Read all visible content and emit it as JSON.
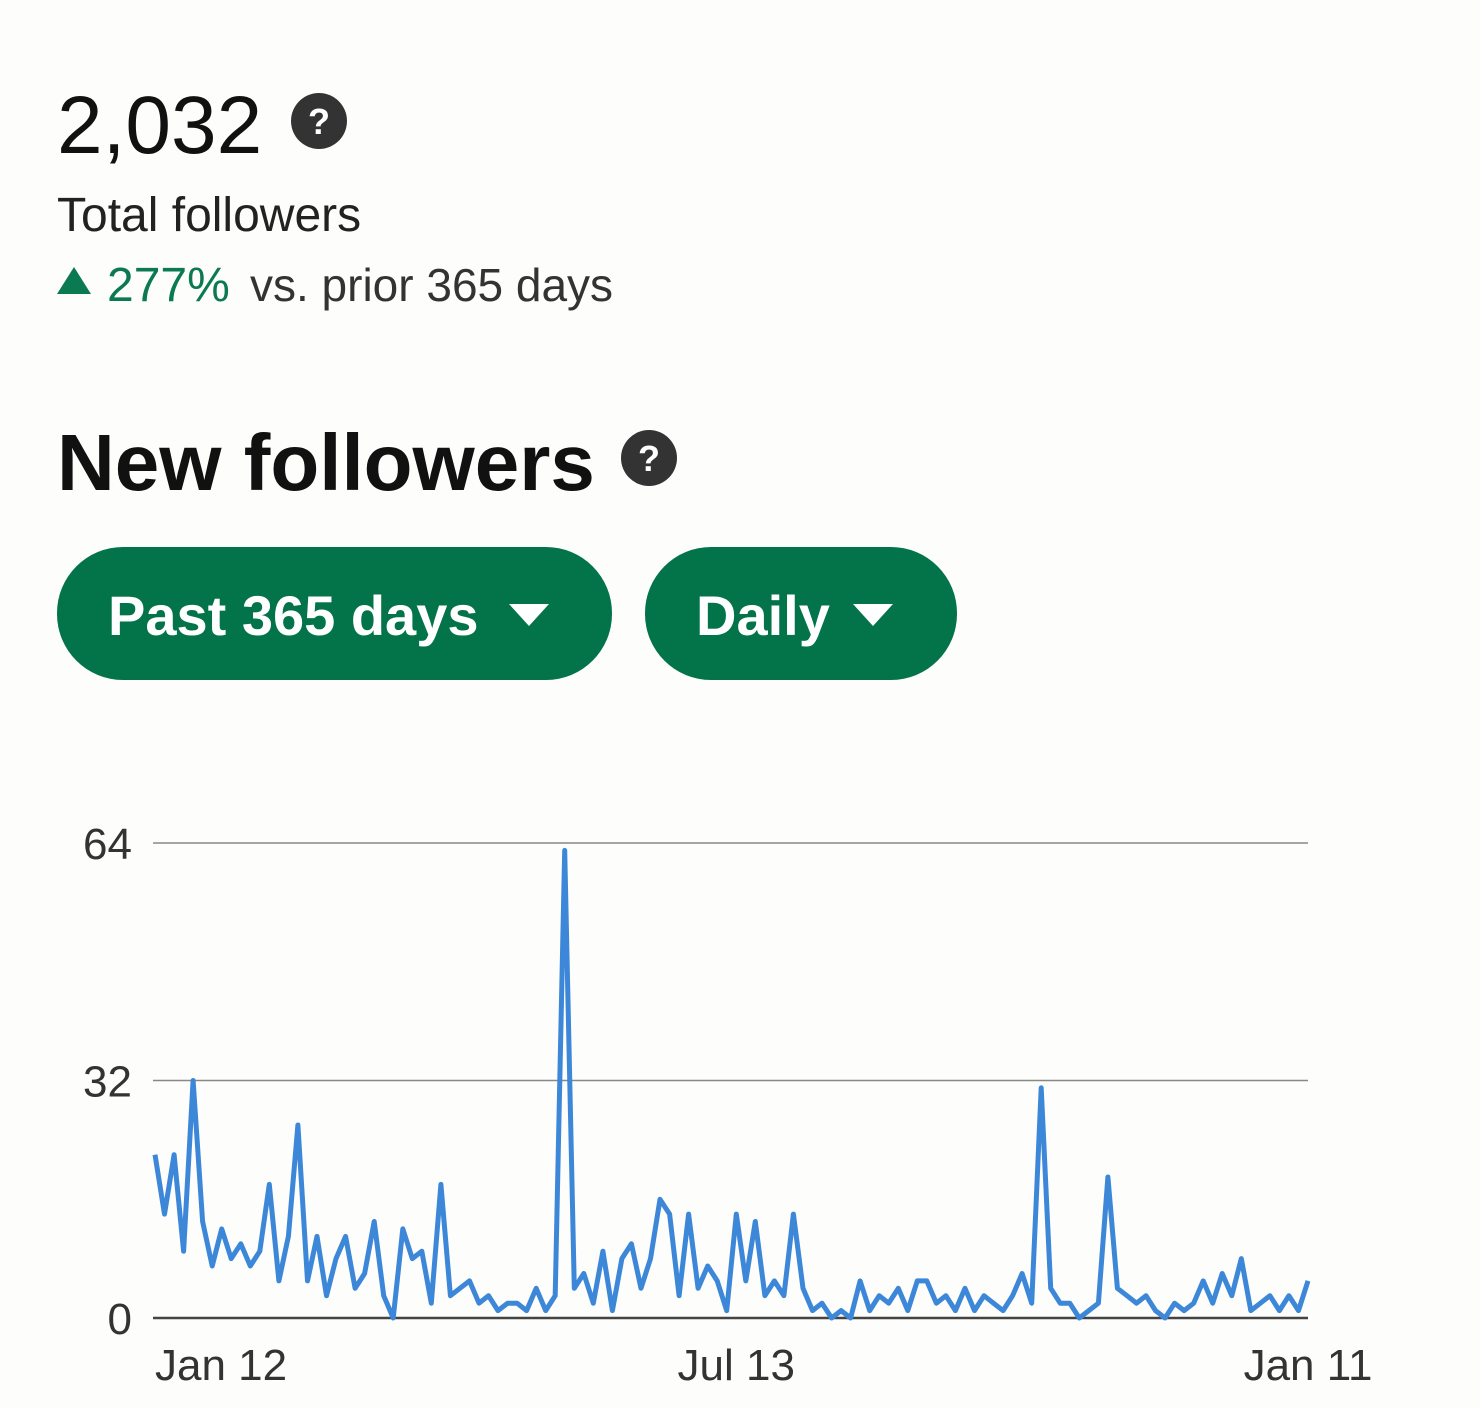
{
  "header": {
    "total": "2,032",
    "total_label": "Total followers",
    "change": "277%",
    "change_label": "vs. prior 365 days"
  },
  "section_title": "New followers",
  "filters": [
    "Past 365 days",
    "Daily"
  ],
  "chart_data": {
    "type": "line",
    "categories": [
      "Jan 12",
      null,
      null,
      null,
      null,
      null,
      null,
      null,
      null,
      null,
      null,
      null,
      null,
      null,
      null,
      null,
      null,
      null,
      null,
      null,
      null,
      null,
      null,
      null,
      null,
      null,
      null,
      null,
      null,
      null,
      null,
      null,
      null,
      null,
      null,
      null,
      null,
      null,
      null,
      null,
      null,
      null,
      null,
      null,
      null,
      null,
      null,
      null,
      null,
      null,
      null,
      null,
      null,
      null,
      null,
      null,
      null,
      null,
      null,
      null,
      null,
      "Jul 13",
      null,
      null,
      null,
      null,
      null,
      null,
      null,
      null,
      null,
      null,
      null,
      null,
      null,
      null,
      null,
      null,
      null,
      null,
      null,
      null,
      null,
      null,
      null,
      null,
      null,
      null,
      null,
      null,
      null,
      null,
      null,
      null,
      null,
      null,
      null,
      null,
      null,
      null,
      null,
      null,
      null,
      null,
      null,
      null,
      null,
      null,
      null,
      null,
      null,
      null,
      null,
      null,
      null,
      null,
      null,
      null,
      null,
      null,
      null,
      "Jan 11"
    ],
    "series": [
      {
        "color": "#3d87d9",
        "values": [
          22,
          14,
          22,
          9,
          32,
          13,
          7,
          12,
          8,
          10,
          7,
          9,
          18,
          5,
          11,
          26,
          5,
          11,
          3,
          8,
          11,
          4,
          6,
          13,
          3,
          0,
          12,
          8,
          9,
          2,
          18,
          3,
          4,
          5,
          2,
          3,
          1,
          2,
          2,
          1,
          4,
          1,
          3,
          63,
          4,
          6,
          2,
          9,
          1,
          8,
          10,
          4,
          8,
          16,
          14,
          3,
          14,
          4,
          7,
          5,
          1,
          14,
          5,
          13,
          3,
          5,
          3,
          14,
          4,
          1,
          2,
          0,
          1,
          0,
          5,
          1,
          3,
          2,
          4,
          1,
          5,
          5,
          2,
          3,
          1,
          4,
          1,
          3,
          2,
          1,
          3,
          6,
          2,
          31,
          4,
          2,
          2,
          0,
          1,
          2,
          19,
          4,
          3,
          2,
          3,
          1,
          0,
          2,
          1,
          2,
          5,
          2,
          6,
          3,
          8,
          1,
          2,
          3,
          1,
          3,
          1,
          5
        ]
      }
    ],
    "ylim": [
      0,
      64
    ],
    "yticks": [
      0,
      32,
      64
    ],
    "grid": true
  }
}
